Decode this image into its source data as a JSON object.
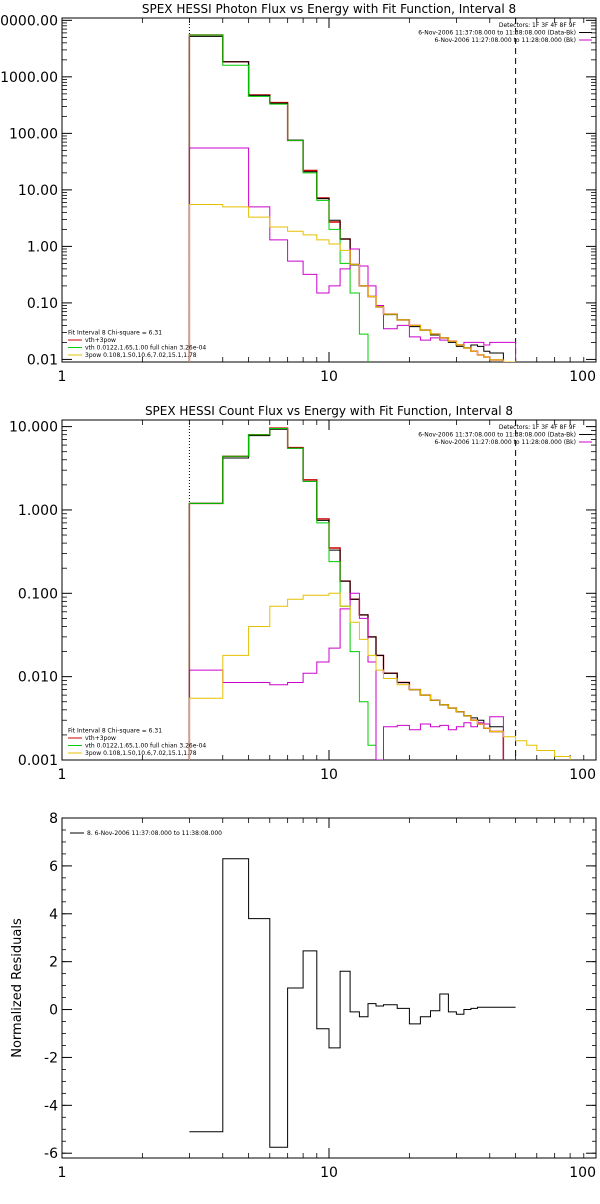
{
  "chart_data": [
    {
      "type": "line",
      "title": "SPEX HESSI Photon Flux vs Energy with Fit Function, Interval 8",
      "xscale": "log",
      "yscale": "log",
      "xlim": [
        1,
        100
      ],
      "ylim": [
        0.009,
        11000
      ],
      "x_ticks": [
        {
          "v": 1,
          "label": "1"
        },
        {
          "v": 10,
          "label": "10"
        },
        {
          "v": 100,
          "label": "100"
        }
      ],
      "y_ticks": [
        {
          "v": 10000,
          "label": "10000.00"
        },
        {
          "v": 1000,
          "label": "1000.00"
        },
        {
          "v": 100,
          "label": "100.00"
        },
        {
          "v": 10,
          "label": "10.00"
        },
        {
          "v": 1,
          "label": "1.00"
        },
        {
          "v": 0.1,
          "label": "0.10"
        },
        {
          "v": 0.01,
          "label": "0.01"
        }
      ],
      "vlines": [
        {
          "x": 3,
          "style": "dotted"
        },
        {
          "x": 50,
          "style": "dashed"
        }
      ],
      "legend_topright": [
        {
          "text": "Detectors: 1F 3F 4F 8F 9F",
          "color": null
        },
        {
          "text": "6-Nov-2006 11:37:08.000 to 11:38:08.000 (Data-Bk)",
          "color": "#000000"
        },
        {
          "text": "6-Nov-2006 11:27:08.000 to 11:28:08.000 (Bk)",
          "color": "#cc00cc"
        }
      ],
      "legend_bottomleft": [
        {
          "text": "Fit Interval 8    Chi-square = 6.31",
          "color": null
        },
        {
          "text": "vth+3pow",
          "color": "#cc0000"
        },
        {
          "text": "vth 0.0122,1.65,1.00  full chian 3.26e-04",
          "color": "#00cc00"
        },
        {
          "text": "3pow 0.108,1.50,10.6,7.02,15.1,1.78",
          "color": "#e6c000"
        }
      ],
      "edges": [
        3,
        4,
        5,
        6,
        7,
        8,
        9,
        10,
        11,
        12,
        13,
        14,
        15,
        16,
        18,
        20,
        22,
        24,
        26,
        28,
        30,
        32,
        34,
        36,
        38,
        40,
        45,
        50,
        55,
        60
      ],
      "series": [
        {
          "color": "#cc0000",
          "width": 1.4,
          "values": [
            5500,
            1850,
            480,
            350,
            75,
            22,
            7.2,
            2.7,
            1.35,
            0.48,
            0.2,
            0.13,
            0.085,
            0.063,
            0.05,
            0.04,
            0.033,
            0.028,
            0.024,
            0.021,
            0.018,
            0.016,
            0.014,
            0.012,
            0.011,
            0.0098
          ]
        },
        {
          "color": "#000000",
          "width": 1.0,
          "values": [
            5200,
            1850,
            470,
            340,
            76,
            21,
            7.0,
            2.9,
            1.35,
            0.47,
            0.2,
            0.13,
            0.085,
            0.062,
            0.05,
            0.038,
            0.033,
            0.027,
            0.024,
            0.02,
            0.017,
            0.016,
            0.018,
            0.017,
            0.014,
            0.013
          ]
        },
        {
          "color": "#00cc00",
          "width": 1.0,
          "values": [
            5500,
            1600,
            450,
            330,
            75,
            20,
            6.5,
            2.0,
            0.5,
            0.15,
            0.028,
            0.005
          ]
        },
        {
          "color": "#cc00cc",
          "width": 1.0,
          "values": [
            55,
            55,
            5.0,
            1.3,
            0.55,
            0.32,
            0.15,
            0.2,
            0.4,
            0.9,
            0.45,
            0.2,
            0.09,
            0.035,
            0.04,
            0.025,
            0.022,
            0.024,
            0.022,
            0.021,
            0.018,
            0.02,
            0.02,
            0.02,
            0.018,
            0.02,
            0.02
          ]
        },
        {
          "color": "#e6c000",
          "width": 1.0,
          "values": [
            5.5,
            5.0,
            3.3,
            2.2,
            1.85,
            1.6,
            1.3,
            1.1,
            0.85,
            0.48,
            0.2,
            0.13,
            0.085,
            0.063,
            0.05,
            0.04,
            0.033,
            0.028,
            0.024,
            0.021,
            0.018,
            0.016,
            0.014,
            0.012,
            0.011,
            0.0098,
            0.009,
            0.008,
            0.007
          ]
        }
      ]
    },
    {
      "type": "line",
      "title": "SPEX HESSI Count Flux vs Energy with Fit Function, Interval 8",
      "xscale": "log",
      "yscale": "log",
      "xlim": [
        1,
        100
      ],
      "ylim": [
        0.001,
        12
      ],
      "x_ticks": [
        {
          "v": 1,
          "label": "1"
        },
        {
          "v": 10,
          "label": "10"
        },
        {
          "v": 100,
          "label": "100"
        }
      ],
      "y_ticks": [
        {
          "v": 10,
          "label": "10.000"
        },
        {
          "v": 1,
          "label": "1.000"
        },
        {
          "v": 0.1,
          "label": "0.100"
        },
        {
          "v": 0.01,
          "label": "0.010"
        },
        {
          "v": 0.001,
          "label": "0.001"
        }
      ],
      "vlines": [
        {
          "x": 3,
          "style": "dotted"
        },
        {
          "x": 50,
          "style": "dashed"
        }
      ],
      "legend_topright": [
        {
          "text": "Detectors: 1F 3F 4F 8F 9F",
          "color": null
        },
        {
          "text": "6-Nov-2006 11:37:08.000 to 11:38:08.000 (Data-Bk)",
          "color": "#000000"
        },
        {
          "text": "6-Nov-2006 11:27:08.000 to 11:28:08.000 (Bk)",
          "color": "#cc00cc"
        }
      ],
      "legend_bottomleft": [
        {
          "text": "Fit Interval 8    Chi-square = 6.31",
          "color": null
        },
        {
          "text": "vth+3pow",
          "color": "#cc0000"
        },
        {
          "text": "vth 0.0122,1.65,1.00  full chian 3.26e-04",
          "color": "#00cc00"
        },
        {
          "text": "3pow 0.108,1.50,10.6,7.02,15.1,1.78",
          "color": "#e6c000"
        }
      ],
      "edges": [
        3,
        4,
        5,
        6,
        7,
        8,
        9,
        10,
        11,
        12,
        13,
        14,
        15,
        16,
        18,
        20,
        22,
        24,
        26,
        28,
        30,
        32,
        34,
        36,
        38,
        40,
        45,
        50,
        55,
        60,
        70,
        80
      ],
      "series": [
        {
          "color": "#cc0000",
          "width": 1.4,
          "values": [
            1.2,
            4.4,
            8.0,
            9.6,
            5.6,
            2.3,
            0.78,
            0.35,
            0.14,
            0.085,
            0.055,
            0.03,
            0.018,
            0.011,
            0.0085,
            0.007,
            0.006,
            0.0052,
            0.0046,
            0.0042,
            0.0038,
            0.0034,
            0.003,
            0.0027,
            0.0024,
            0.0022
          ]
        },
        {
          "color": "#000000",
          "width": 1.0,
          "values": [
            1.2,
            4.2,
            7.8,
            9.3,
            5.5,
            2.2,
            0.75,
            0.33,
            0.14,
            0.085,
            0.055,
            0.03,
            0.018,
            0.011,
            0.0085,
            0.007,
            0.006,
            0.0052,
            0.0046,
            0.0042,
            0.0038,
            0.0034,
            0.0032,
            0.003,
            0.0027,
            0.0025
          ]
        },
        {
          "color": "#00cc00",
          "width": 1.0,
          "values": [
            1.2,
            4.4,
            8.0,
            9.5,
            5.5,
            2.2,
            0.7,
            0.24,
            0.07,
            0.02,
            0.005,
            0.0015,
            0.0005
          ]
        },
        {
          "color": "#cc00cc",
          "width": 1.0,
          "values": [
            0.012,
            0.0085,
            0.0085,
            0.008,
            0.0085,
            0.011,
            0.015,
            0.022,
            0.065,
            0.1,
            0.05,
            0.015,
            0.001,
            0.0025,
            0.0026,
            0.0023,
            0.0027,
            0.0025,
            0.0026,
            0.0023,
            0.0025,
            0.0028,
            0.0025,
            0.0028,
            0.0027,
            0.0033
          ]
        },
        {
          "color": "#e6c000",
          "width": 1.0,
          "values": [
            0.0055,
            0.018,
            0.04,
            0.07,
            0.085,
            0.095,
            0.095,
            0.1,
            0.07,
            0.045,
            0.028,
            0.018,
            0.012,
            0.0095,
            0.008,
            0.007,
            0.006,
            0.0052,
            0.0046,
            0.0042,
            0.0038,
            0.0034,
            0.003,
            0.0027,
            0.0024,
            0.0022,
            0.0019,
            0.0017,
            0.0015,
            0.0013,
            0.0011
          ]
        }
      ]
    },
    {
      "type": "line",
      "title": "",
      "xscale": "log",
      "yscale": "linear",
      "xlim": [
        1,
        100
      ],
      "ylim": [
        -6.2,
        8
      ],
      "ylabel": "Normalized Residuals",
      "x_ticks": [
        {
          "v": 1,
          "label": "1"
        },
        {
          "v": 10,
          "label": "10"
        },
        {
          "v": 100,
          "label": "100"
        }
      ],
      "y_ticks": [
        {
          "v": 8,
          "label": "8"
        },
        {
          "v": 6,
          "label": "6"
        },
        {
          "v": 4,
          "label": "4"
        },
        {
          "v": 2,
          "label": "2"
        },
        {
          "v": 0,
          "label": "0"
        },
        {
          "v": -2,
          "label": "-2"
        },
        {
          "v": -4,
          "label": "-4"
        },
        {
          "v": -6,
          "label": "-6"
        }
      ],
      "legend_topleft": [
        {
          "text": "8.  6-Nov-2006 11:37:08.000 to 11:38:08.000",
          "color": "#000000"
        }
      ],
      "edges": [
        3,
        4,
        5,
        6,
        7,
        8,
        9,
        10,
        11,
        12,
        13,
        14,
        15,
        16,
        18,
        20,
        22,
        24,
        26,
        28,
        30,
        32,
        34,
        36,
        38,
        40,
        45,
        50
      ],
      "series": [
        {
          "color": "#000000",
          "width": 1.0,
          "values": [
            -5.1,
            6.3,
            3.8,
            -5.75,
            0.9,
            2.45,
            -0.8,
            -1.6,
            1.6,
            -0.1,
            -0.3,
            0.25,
            0.15,
            0.2,
            0.05,
            -0.6,
            -0.3,
            -0.05,
            0.65,
            -0.1,
            -0.2,
            0.0,
            0.05,
            0.1,
            0.1,
            0.1,
            0.1
          ]
        }
      ]
    }
  ]
}
